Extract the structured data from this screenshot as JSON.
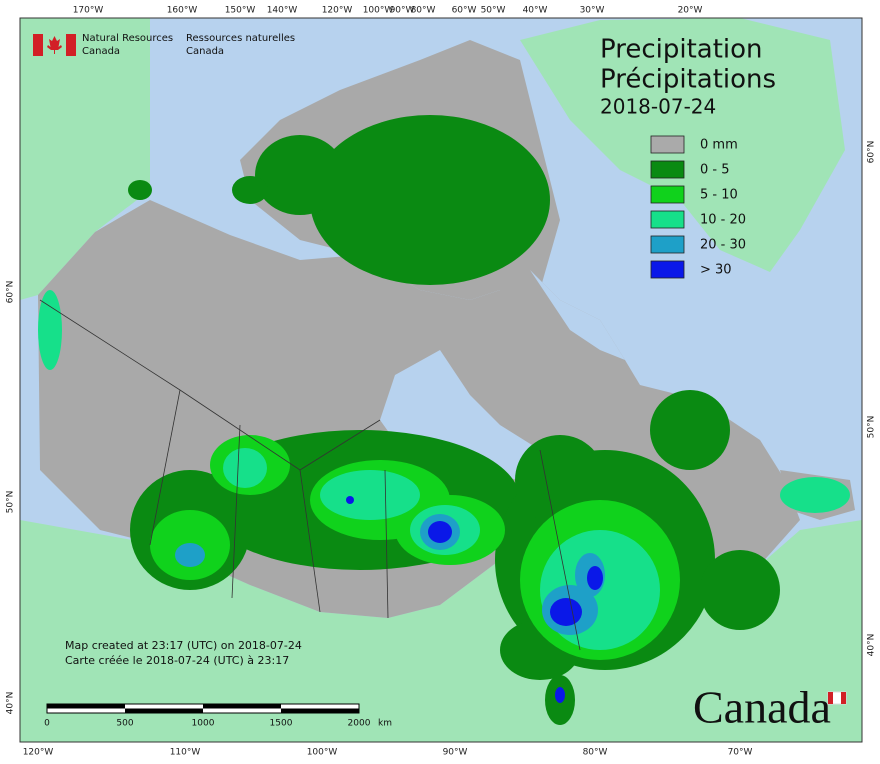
{
  "header": {
    "agency_en": [
      "Natural Resources",
      "Canada"
    ],
    "agency_fr": [
      "Ressources naturelles",
      "Canada"
    ]
  },
  "title": {
    "en": "Precipitation",
    "fr": "Précipitations",
    "date": "2018-07-24"
  },
  "legend": [
    {
      "label": "0 mm",
      "color": "#aaaaaa"
    },
    {
      "label": "0 - 5",
      "color": "#0a8a12"
    },
    {
      "label": "5 - 10",
      "color": "#10d21c"
    },
    {
      "label": "10 - 20",
      "color": "#16e08a"
    },
    {
      "label": "20 - 30",
      "color": "#1ea0c8"
    },
    {
      "label": "> 30",
      "color": "#0a18e8"
    }
  ],
  "graticule": {
    "top": [
      "170°W",
      "160°W",
      "150°W",
      "140°W",
      "120°W",
      "100°W",
      "90°W",
      "80°W",
      "60°W",
      "50°W",
      "40°W",
      "30°W",
      "20°W"
    ],
    "bottom": [
      "120°W",
      "110°W",
      "100°W",
      "90°W",
      "80°W",
      "70°W"
    ],
    "left": [
      "60°N",
      "50°N",
      "40°N"
    ],
    "right": [
      "60°N",
      "50°N",
      "40°N"
    ]
  },
  "scale_bar": {
    "ticks": [
      0,
      500,
      1000,
      1500,
      2000
    ],
    "unit": "km"
  },
  "notes": [
    "Map created at 23:17 (UTC) on 2018-07-24",
    "Carte créée le 2018-07-24 (UTC) à 23:17"
  ],
  "wordmark": "Canada"
}
